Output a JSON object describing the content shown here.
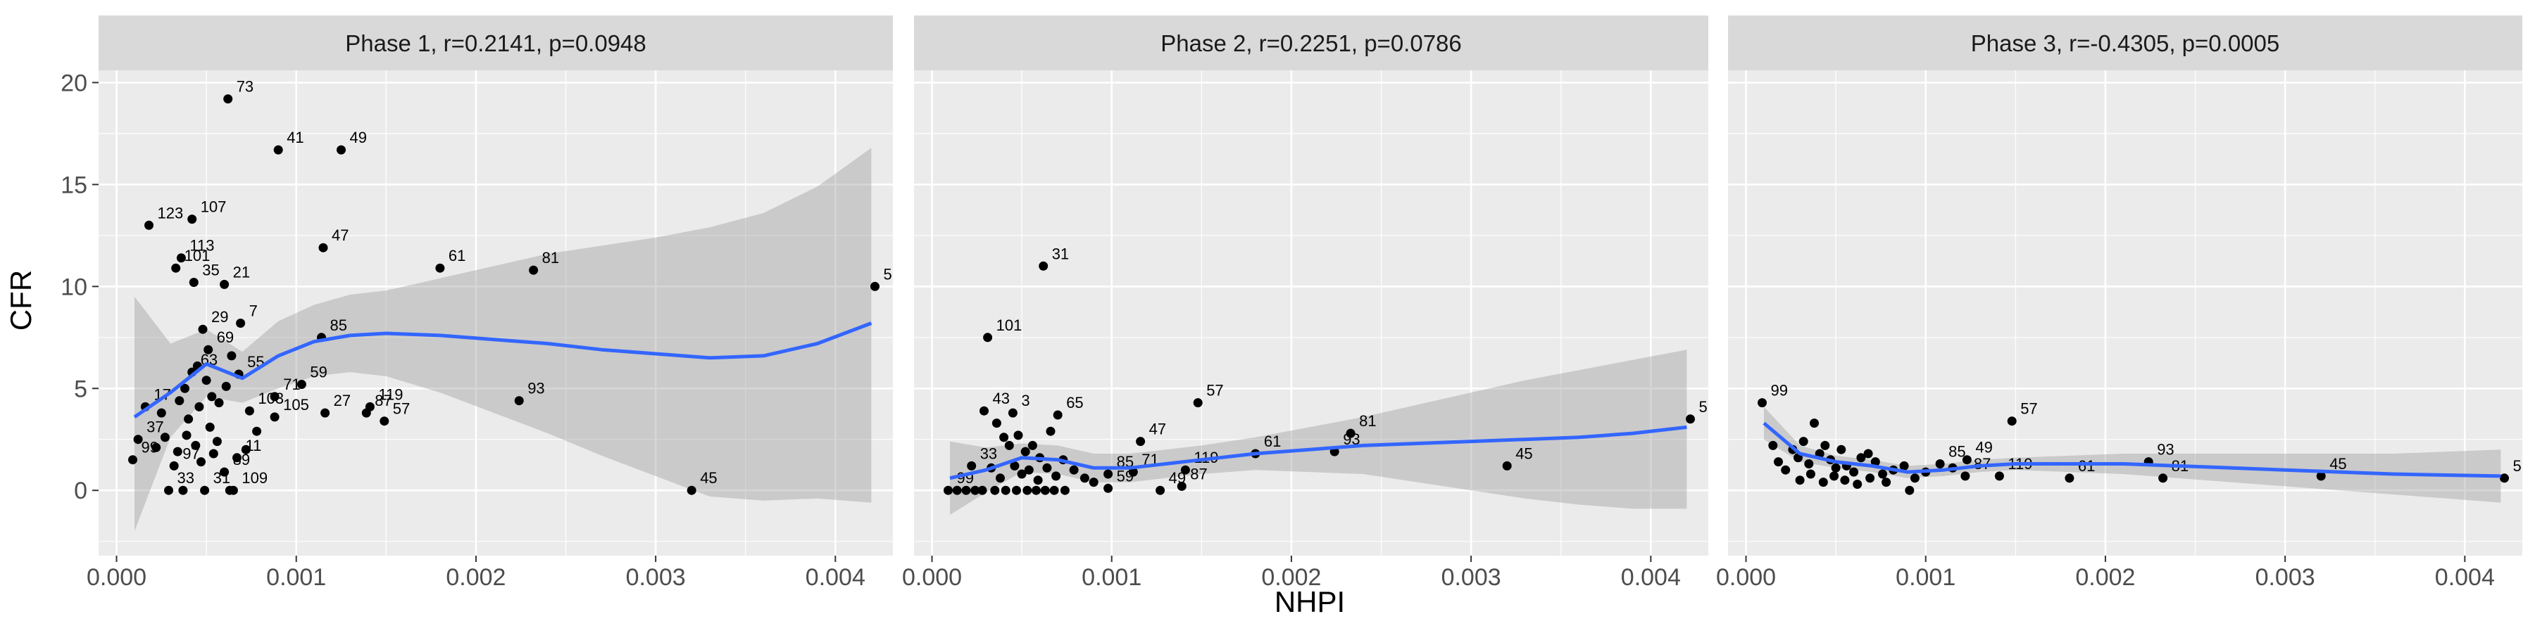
{
  "figure": {
    "xlabel": "NHPI",
    "ylabel": "CFR",
    "xlim": [
      -0.0001,
      0.00432
    ],
    "ylim": [
      -3.2,
      20.6
    ],
    "xticks": [
      0.0,
      0.001,
      0.002,
      0.003,
      0.004
    ],
    "xtick_labels": [
      "0.000",
      "0.001",
      "0.002",
      "0.003",
      "0.004"
    ],
    "yticks": [
      0,
      5,
      10,
      15,
      20
    ],
    "ytick_labels": [
      "0",
      "5",
      "10",
      "15",
      "20"
    ],
    "colors": {
      "panel_bg": "#ebebeb",
      "strip_bg": "#d9d9d9",
      "grid": "#ffffff",
      "point": "#000000",
      "smooth": "#3366ff",
      "ribbon": "#999999"
    }
  },
  "chart_data": [
    {
      "type": "scatter",
      "title": "Phase 1, r=0.2141, p=0.0948",
      "points": [
        {
          "x": 0.00062,
          "y": 19.2,
          "label": "73"
        },
        {
          "x": 0.0009,
          "y": 16.7,
          "label": "41"
        },
        {
          "x": 0.00125,
          "y": 16.7,
          "label": "49"
        },
        {
          "x": 0.00018,
          "y": 13.0,
          "label": "123"
        },
        {
          "x": 0.00042,
          "y": 13.3,
          "label": "107"
        },
        {
          "x": 0.00115,
          "y": 11.9,
          "label": "47"
        },
        {
          "x": 0.00036,
          "y": 11.4,
          "label": "113"
        },
        {
          "x": 0.00033,
          "y": 10.9,
          "label": "101"
        },
        {
          "x": 0.0018,
          "y": 10.9,
          "label": "61"
        },
        {
          "x": 0.00232,
          "y": 10.8,
          "label": "81"
        },
        {
          "x": 0.00422,
          "y": 10.0,
          "label": "5"
        },
        {
          "x": 0.00043,
          "y": 10.2,
          "label": "35"
        },
        {
          "x": 0.0006,
          "y": 10.1,
          "label": "21"
        },
        {
          "x": 0.00069,
          "y": 8.2,
          "label": "7"
        },
        {
          "x": 0.00048,
          "y": 7.9,
          "label": "29"
        },
        {
          "x": 0.00051,
          "y": 6.9,
          "label": "69"
        },
        {
          "x": 0.00114,
          "y": 7.5,
          "label": "85"
        },
        {
          "x": 0.00042,
          "y": 5.8,
          "label": "63"
        },
        {
          "x": 0.00068,
          "y": 5.7,
          "label": "55"
        },
        {
          "x": 0.00103,
          "y": 5.2,
          "label": "59"
        },
        {
          "x": 0.00088,
          "y": 4.6,
          "label": "71"
        },
        {
          "x": 0.00141,
          "y": 4.1,
          "label": "119"
        },
        {
          "x": 0.00016,
          "y": 4.1,
          "label": "17"
        },
        {
          "x": 0.00074,
          "y": 3.9,
          "label": "103"
        },
        {
          "x": 0.00088,
          "y": 3.6,
          "label": "105"
        },
        {
          "x": 0.00116,
          "y": 3.8,
          "label": "27"
        },
        {
          "x": 0.00149,
          "y": 3.4,
          "label": "57"
        },
        {
          "x": 0.00139,
          "y": 3.8,
          "label": "87"
        },
        {
          "x": 0.00224,
          "y": 4.4,
          "label": "93"
        },
        {
          "x": 0.00012,
          "y": 2.5,
          "label": "37"
        },
        {
          "x": 9e-05,
          "y": 1.5,
          "label": "99"
        },
        {
          "x": 0.00032,
          "y": 1.2,
          "label": "97"
        },
        {
          "x": 0.00067,
          "y": 1.6,
          "label": "11"
        },
        {
          "x": 0.0006,
          "y": 0.9,
          "label": "89"
        },
        {
          "x": 0.00029,
          "y": 0.0,
          "label": "33"
        },
        {
          "x": 0.00049,
          "y": 0.0,
          "label": "31"
        },
        {
          "x": 0.00065,
          "y": 0.0,
          "label": "109"
        },
        {
          "x": 0.0032,
          "y": 0.0,
          "label": "45"
        },
        {
          "x": 0.00025,
          "y": 3.8,
          "label": ""
        },
        {
          "x": 0.00035,
          "y": 4.4,
          "label": ""
        },
        {
          "x": 0.0004,
          "y": 3.5,
          "label": ""
        },
        {
          "x": 0.00046,
          "y": 4.1,
          "label": ""
        },
        {
          "x": 0.0005,
          "y": 5.4,
          "label": ""
        },
        {
          "x": 0.00053,
          "y": 4.6,
          "label": ""
        },
        {
          "x": 0.00057,
          "y": 4.3,
          "label": ""
        },
        {
          "x": 0.00061,
          "y": 5.1,
          "label": ""
        },
        {
          "x": 0.00064,
          "y": 6.6,
          "label": ""
        },
        {
          "x": 0.00038,
          "y": 5.0,
          "label": ""
        },
        {
          "x": 0.00045,
          "y": 6.1,
          "label": ""
        },
        {
          "x": 0.00022,
          "y": 2.1,
          "label": ""
        },
        {
          "x": 0.00027,
          "y": 2.6,
          "label": ""
        },
        {
          "x": 0.00034,
          "y": 1.9,
          "label": ""
        },
        {
          "x": 0.00039,
          "y": 2.7,
          "label": ""
        },
        {
          "x": 0.00044,
          "y": 2.2,
          "label": ""
        },
        {
          "x": 0.00052,
          "y": 3.1,
          "label": ""
        },
        {
          "x": 0.00056,
          "y": 2.4,
          "label": ""
        },
        {
          "x": 0.00072,
          "y": 2.0,
          "label": ""
        },
        {
          "x": 0.00078,
          "y": 2.9,
          "label": ""
        },
        {
          "x": 0.00037,
          "y": 0.0,
          "label": ""
        },
        {
          "x": 0.00063,
          "y": 0.0,
          "label": ""
        },
        {
          "x": 0.00047,
          "y": 1.4,
          "label": ""
        },
        {
          "x": 0.00054,
          "y": 1.8,
          "label": ""
        }
      ],
      "smooth": {
        "x": [
          0.0001,
          0.0003,
          0.0005,
          0.0007,
          0.0009,
          0.0011,
          0.0013,
          0.0015,
          0.0018,
          0.0021,
          0.0024,
          0.0027,
          0.003,
          0.0033,
          0.0036,
          0.0039,
          0.0042
        ],
        "y": [
          3.6,
          4.8,
          6.2,
          5.5,
          6.6,
          7.3,
          7.6,
          7.7,
          7.6,
          7.4,
          7.2,
          6.9,
          6.7,
          6.5,
          6.6,
          7.2,
          8.2
        ],
        "ymin": [
          -2.0,
          2.6,
          4.6,
          4.3,
          5.0,
          5.6,
          5.8,
          5.6,
          4.8,
          3.8,
          2.8,
          1.7,
          0.7,
          -0.3,
          -0.5,
          -0.4,
          -0.6
        ],
        "ymax": [
          9.5,
          7.2,
          7.9,
          6.8,
          8.3,
          9.1,
          9.6,
          9.8,
          10.4,
          11.0,
          11.6,
          12.0,
          12.4,
          12.9,
          13.6,
          14.9,
          16.8
        ]
      }
    },
    {
      "type": "scatter",
      "title": "Phase 2, r=0.2251, p=0.0786",
      "points": [
        {
          "x": 0.00062,
          "y": 11.0,
          "label": "31"
        },
        {
          "x": 0.00031,
          "y": 7.5,
          "label": "101"
        },
        {
          "x": 0.00029,
          "y": 3.9,
          "label": "43"
        },
        {
          "x": 0.00045,
          "y": 3.8,
          "label": "3"
        },
        {
          "x": 0.0007,
          "y": 3.7,
          "label": "65"
        },
        {
          "x": 0.00148,
          "y": 4.3,
          "label": "57"
        },
        {
          "x": 0.00116,
          "y": 2.4,
          "label": "47"
        },
        {
          "x": 0.00422,
          "y": 3.5,
          "label": "5"
        },
        {
          "x": 0.00233,
          "y": 2.8,
          "label": "81"
        },
        {
          "x": 0.0018,
          "y": 1.8,
          "label": "61"
        },
        {
          "x": 0.00224,
          "y": 1.9,
          "label": "93"
        },
        {
          "x": 0.00141,
          "y": 1.0,
          "label": "119"
        },
        {
          "x": 0.00098,
          "y": 0.8,
          "label": "85"
        },
        {
          "x": 0.00112,
          "y": 0.9,
          "label": "71"
        },
        {
          "x": 0.00098,
          "y": 0.1,
          "label": "59"
        },
        {
          "x": 0.00127,
          "y": 0.0,
          "label": "49"
        },
        {
          "x": 0.00139,
          "y": 0.2,
          "label": "87"
        },
        {
          "x": 0.0032,
          "y": 1.2,
          "label": "45"
        },
        {
          "x": 0.00022,
          "y": 1.2,
          "label": "33"
        },
        {
          "x": 9e-05,
          "y": 0.0,
          "label": "99"
        },
        {
          "x": 0.00036,
          "y": 3.3,
          "label": ""
        },
        {
          "x": 0.0004,
          "y": 2.6,
          "label": ""
        },
        {
          "x": 0.00043,
          "y": 2.2,
          "label": ""
        },
        {
          "x": 0.00048,
          "y": 2.7,
          "label": ""
        },
        {
          "x": 0.00052,
          "y": 1.9,
          "label": ""
        },
        {
          "x": 0.00056,
          "y": 2.2,
          "label": ""
        },
        {
          "x": 0.0006,
          "y": 1.6,
          "label": ""
        },
        {
          "x": 0.00066,
          "y": 2.9,
          "label": ""
        },
        {
          "x": 0.00073,
          "y": 1.5,
          "label": ""
        },
        {
          "x": 0.00079,
          "y": 1.0,
          "label": ""
        },
        {
          "x": 0.00085,
          "y": 0.6,
          "label": ""
        },
        {
          "x": 0.00033,
          "y": 1.1,
          "label": ""
        },
        {
          "x": 0.00038,
          "y": 0.6,
          "label": ""
        },
        {
          "x": 0.00046,
          "y": 1.2,
          "label": ""
        },
        {
          "x": 0.0005,
          "y": 0.8,
          "label": ""
        },
        {
          "x": 0.00054,
          "y": 1.0,
          "label": ""
        },
        {
          "x": 0.00059,
          "y": 0.5,
          "label": ""
        },
        {
          "x": 0.00064,
          "y": 1.1,
          "label": ""
        },
        {
          "x": 0.00069,
          "y": 0.7,
          "label": ""
        },
        {
          "x": 0.0009,
          "y": 0.4,
          "label": ""
        },
        {
          "x": 0.00014,
          "y": 0.0,
          "label": ""
        },
        {
          "x": 0.00019,
          "y": 0.0,
          "label": ""
        },
        {
          "x": 0.00024,
          "y": 0.0,
          "label": ""
        },
        {
          "x": 0.00028,
          "y": 0.0,
          "label": ""
        },
        {
          "x": 0.00035,
          "y": 0.0,
          "label": ""
        },
        {
          "x": 0.00041,
          "y": 0.0,
          "label": ""
        },
        {
          "x": 0.00047,
          "y": 0.0,
          "label": ""
        },
        {
          "x": 0.00053,
          "y": 0.0,
          "label": ""
        },
        {
          "x": 0.00058,
          "y": 0.0,
          "label": ""
        },
        {
          "x": 0.00063,
          "y": 0.0,
          "label": ""
        },
        {
          "x": 0.00068,
          "y": 0.0,
          "label": ""
        },
        {
          "x": 0.00074,
          "y": 0.0,
          "label": ""
        }
      ],
      "smooth": {
        "x": [
          0.0001,
          0.0003,
          0.0005,
          0.0007,
          0.0009,
          0.0011,
          0.0013,
          0.0015,
          0.0018,
          0.0021,
          0.0024,
          0.0027,
          0.003,
          0.0033,
          0.0036,
          0.0039,
          0.0042
        ],
        "y": [
          0.6,
          1.0,
          1.6,
          1.5,
          1.1,
          1.1,
          1.3,
          1.5,
          1.8,
          2.0,
          2.2,
          2.3,
          2.4,
          2.5,
          2.6,
          2.8,
          3.1
        ],
        "ymin": [
          -1.2,
          -0.1,
          0.9,
          0.8,
          0.4,
          0.4,
          0.6,
          0.8,
          1.0,
          0.9,
          0.8,
          0.4,
          0.0,
          -0.4,
          -0.7,
          -0.9,
          -0.9
        ],
        "ymax": [
          2.4,
          2.1,
          2.3,
          2.2,
          1.8,
          1.8,
          2.0,
          2.2,
          2.6,
          3.1,
          3.6,
          4.2,
          4.8,
          5.4,
          5.9,
          6.4,
          6.9
        ]
      }
    },
    {
      "type": "scatter",
      "title": "Phase 3, r=-0.4305, p=0.0005",
      "points": [
        {
          "x": 9e-05,
          "y": 4.3,
          "label": "99"
        },
        {
          "x": 0.00148,
          "y": 3.4,
          "label": "57"
        },
        {
          "x": 0.00108,
          "y": 1.3,
          "label": "85"
        },
        {
          "x": 0.00123,
          "y": 1.5,
          "label": "49"
        },
        {
          "x": 0.00224,
          "y": 1.4,
          "label": "93"
        },
        {
          "x": 0.00141,
          "y": 0.7,
          "label": "119"
        },
        {
          "x": 0.00122,
          "y": 0.7,
          "label": "87"
        },
        {
          "x": 0.0018,
          "y": 0.6,
          "label": "61"
        },
        {
          "x": 0.00232,
          "y": 0.6,
          "label": "81"
        },
        {
          "x": 0.0032,
          "y": 0.7,
          "label": "45"
        },
        {
          "x": 0.00422,
          "y": 0.6,
          "label": "5"
        },
        {
          "x": 0.00015,
          "y": 2.2,
          "label": ""
        },
        {
          "x": 0.00018,
          "y": 1.4,
          "label": ""
        },
        {
          "x": 0.00022,
          "y": 1.0,
          "label": ""
        },
        {
          "x": 0.00026,
          "y": 2.0,
          "label": ""
        },
        {
          "x": 0.00029,
          "y": 1.6,
          "label": ""
        },
        {
          "x": 0.00032,
          "y": 2.4,
          "label": ""
        },
        {
          "x": 0.00035,
          "y": 1.3,
          "label": ""
        },
        {
          "x": 0.00038,
          "y": 3.3,
          "label": ""
        },
        {
          "x": 0.00041,
          "y": 1.8,
          "label": ""
        },
        {
          "x": 0.00044,
          "y": 2.2,
          "label": ""
        },
        {
          "x": 0.00047,
          "y": 1.5,
          "label": ""
        },
        {
          "x": 0.0005,
          "y": 1.1,
          "label": ""
        },
        {
          "x": 0.00053,
          "y": 2.0,
          "label": ""
        },
        {
          "x": 0.00056,
          "y": 1.2,
          "label": ""
        },
        {
          "x": 0.0006,
          "y": 0.9,
          "label": ""
        },
        {
          "x": 0.00064,
          "y": 1.6,
          "label": ""
        },
        {
          "x": 0.00068,
          "y": 1.8,
          "label": ""
        },
        {
          "x": 0.00072,
          "y": 1.4,
          "label": ""
        },
        {
          "x": 0.00076,
          "y": 0.8,
          "label": ""
        },
        {
          "x": 0.00082,
          "y": 1.0,
          "label": ""
        },
        {
          "x": 0.00088,
          "y": 1.2,
          "label": ""
        },
        {
          "x": 0.00094,
          "y": 0.6,
          "label": ""
        },
        {
          "x": 0.001,
          "y": 0.9,
          "label": ""
        },
        {
          "x": 0.0003,
          "y": 0.5,
          "label": ""
        },
        {
          "x": 0.00036,
          "y": 0.8,
          "label": ""
        },
        {
          "x": 0.00043,
          "y": 0.4,
          "label": ""
        },
        {
          "x": 0.00049,
          "y": 0.7,
          "label": ""
        },
        {
          "x": 0.00055,
          "y": 0.5,
          "label": ""
        },
        {
          "x": 0.00062,
          "y": 0.3,
          "label": ""
        },
        {
          "x": 0.00069,
          "y": 0.6,
          "label": ""
        },
        {
          "x": 0.00078,
          "y": 0.4,
          "label": ""
        },
        {
          "x": 0.00091,
          "y": 0.0,
          "label": ""
        },
        {
          "x": 0.00115,
          "y": 1.1,
          "label": ""
        }
      ],
      "smooth": {
        "x": [
          0.0001,
          0.0003,
          0.0005,
          0.0007,
          0.0009,
          0.0011,
          0.0013,
          0.0015,
          0.0018,
          0.0021,
          0.0024,
          0.0027,
          0.003,
          0.0033,
          0.0036,
          0.0039,
          0.0042
        ],
        "y": [
          3.3,
          1.8,
          1.4,
          1.2,
          0.9,
          1.0,
          1.2,
          1.3,
          1.3,
          1.3,
          1.2,
          1.1,
          1.0,
          0.9,
          0.8,
          0.75,
          0.7
        ],
        "ymin": [
          2.5,
          1.4,
          1.1,
          0.9,
          0.6,
          0.7,
          0.9,
          1.0,
          0.9,
          0.8,
          0.6,
          0.4,
          0.2,
          0.0,
          -0.2,
          -0.4,
          -0.6
        ],
        "ymax": [
          4.1,
          2.2,
          1.7,
          1.5,
          1.2,
          1.3,
          1.5,
          1.6,
          1.7,
          1.8,
          1.8,
          1.8,
          1.8,
          1.8,
          1.8,
          1.9,
          2.0
        ]
      }
    }
  ]
}
